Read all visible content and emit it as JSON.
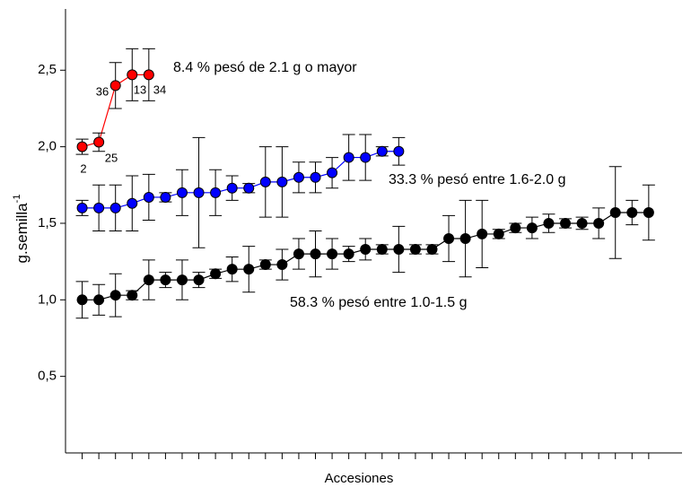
{
  "chart_data": {
    "type": "line",
    "y_label": "g.semilla",
    "y_label_sup": "-1",
    "x_label": "Accesiones",
    "x": [
      1,
      2,
      3,
      4,
      5,
      6,
      7,
      8,
      9,
      10,
      11,
      12,
      13,
      14,
      15,
      16,
      17,
      18,
      19,
      20,
      21,
      22,
      23,
      24,
      25,
      26,
      27,
      28,
      29,
      30,
      31,
      32,
      33,
      34,
      35
    ],
    "xlim": [
      0,
      37
    ],
    "ylim": [
      0,
      2.9
    ],
    "yticks": [
      {
        "value": 0.5,
        "label": "0,5"
      },
      {
        "value": 1.0,
        "label": "1,0"
      },
      {
        "value": 1.5,
        "label": "1,5"
      },
      {
        "value": 2.0,
        "label": "2,0"
      },
      {
        "value": 2.5,
        "label": "2,5"
      }
    ],
    "series": [
      {
        "name": "58.3 % pesó entre 1.0-1.5 g",
        "color": "#000000",
        "values": [
          1.0,
          1.0,
          1.03,
          1.03,
          1.13,
          1.13,
          1.13,
          1.13,
          1.17,
          1.2,
          1.2,
          1.23,
          1.23,
          1.3,
          1.3,
          1.3,
          1.3,
          1.33,
          1.33,
          1.33,
          1.33,
          1.33,
          1.4,
          1.4,
          1.43,
          1.43,
          1.47,
          1.47,
          1.5,
          1.5,
          1.5,
          1.5,
          1.57,
          1.57,
          1.57
        ],
        "errors": [
          0.12,
          0.1,
          0.14,
          0.03,
          0.13,
          0.05,
          0.13,
          0.05,
          0.03,
          0.08,
          0.15,
          0.03,
          0.1,
          0.1,
          0.15,
          0.1,
          0.05,
          0.07,
          0.03,
          0.15,
          0.03,
          0.03,
          0.15,
          0.25,
          0.22,
          0.03,
          0.03,
          0.07,
          0.06,
          0.03,
          0.04,
          0.1,
          0.3,
          0.08,
          0.18
        ]
      },
      {
        "name": "33.3 % pesó entre 1.6-2.0 g",
        "color": "#0000ff",
        "values": [
          1.6,
          1.6,
          1.6,
          1.63,
          1.67,
          1.67,
          1.7,
          1.7,
          1.7,
          1.73,
          1.73,
          1.77,
          1.77,
          1.8,
          1.8,
          1.83,
          1.93,
          1.93,
          1.97,
          1.97,
          null,
          null,
          null,
          null,
          null,
          null,
          null,
          null,
          null,
          null,
          null,
          null,
          null,
          null,
          null
        ],
        "errors": [
          0.05,
          0.15,
          0.15,
          0.18,
          0.15,
          0.03,
          0.15,
          0.36,
          0.15,
          0.08,
          0.03,
          0.23,
          0.23,
          0.1,
          0.1,
          0.1,
          0.15,
          0.15,
          0.03,
          0.09,
          null,
          null,
          null,
          null,
          null,
          null,
          null,
          null,
          null,
          null,
          null,
          null,
          null,
          null,
          null
        ]
      },
      {
        "name": "8.4 % pesó de 2.1 g o mayor",
        "color": "#ff0000",
        "values": [
          2.0,
          2.03,
          2.4,
          2.47,
          2.47,
          null,
          null,
          null,
          null,
          null,
          null,
          null,
          null,
          null,
          null,
          null,
          null,
          null,
          null,
          null,
          null,
          null,
          null,
          null,
          null,
          null,
          null,
          null,
          null,
          null,
          null,
          null,
          null,
          null,
          null
        ],
        "errors": [
          0.05,
          0.06,
          0.15,
          0.17,
          0.17,
          null,
          null,
          null,
          null,
          null,
          null,
          null,
          null,
          null,
          null,
          null,
          null,
          null,
          null,
          null,
          null,
          null,
          null,
          null,
          null,
          null,
          null,
          null,
          null,
          null,
          null,
          null,
          null,
          null,
          null
        ]
      }
    ],
    "point_labels": [
      "2",
      "25",
      "36",
      "13",
      "34"
    ]
  }
}
